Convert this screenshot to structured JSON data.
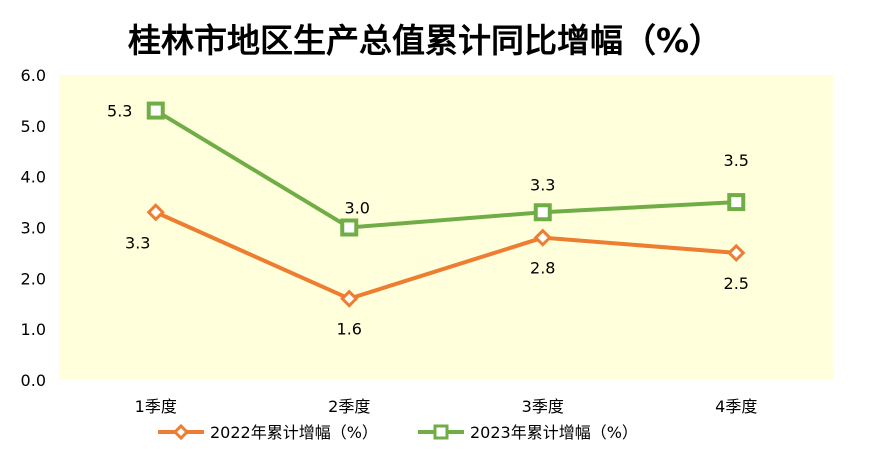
{
  "chart_data": {
    "type": "line",
    "title": "桂林市地区生产总值累计同比增幅（%）",
    "categories": [
      "1季度",
      "2季度",
      "3季度",
      "4季度"
    ],
    "series": [
      {
        "name": "2022年累计增幅（%）",
        "values": [
          3.3,
          1.6,
          2.8,
          2.5
        ],
        "labels": [
          "3.3",
          "1.6",
          "2.8",
          "2.5"
        ],
        "color": "#ED7D31",
        "marker": "diamond"
      },
      {
        "name": "2023年累计增幅（%）",
        "values": [
          5.3,
          3.0,
          3.3,
          3.5
        ],
        "labels": [
          "5.3",
          "3.0",
          "3.3",
          "3.5"
        ],
        "color": "#70AD47",
        "marker": "square"
      }
    ],
    "yticks": [
      "0.0",
      "1.0",
      "2.0",
      "3.0",
      "4.0",
      "5.0",
      "6.0"
    ],
    "ylim": [
      0,
      6
    ],
    "grid": false,
    "legend": "bottom",
    "plot_background": "#FFFFDC"
  }
}
